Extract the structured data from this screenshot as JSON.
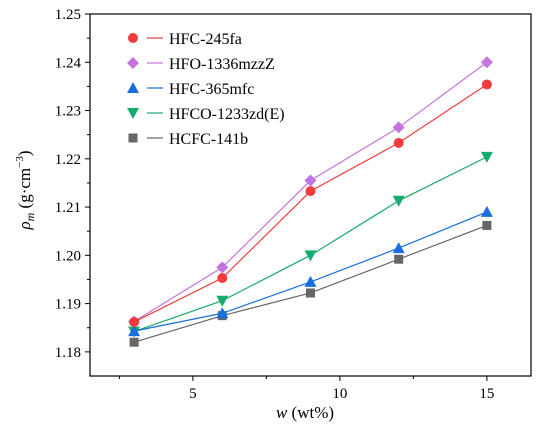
{
  "chart_data": {
    "type": "line",
    "xlabel": "w (wt%)",
    "ylabel": "ρm (g·cm−3)",
    "xlim": [
      1.5,
      16.5
    ],
    "ylim": [
      1.175,
      1.25
    ],
    "x_ticks": [
      5,
      10,
      15
    ],
    "x_tick_labels": [
      "5",
      "10",
      "15"
    ],
    "y_ticks": [
      1.18,
      1.19,
      1.2,
      1.21,
      1.22,
      1.23,
      1.24,
      1.25
    ],
    "y_tick_labels": [
      "1.18",
      "1.19",
      "1.20",
      "1.21",
      "1.22",
      "1.23",
      "1.24",
      "1.25"
    ],
    "grid": false,
    "legend_position": "top-left",
    "x": [
      3,
      6,
      9,
      12,
      15
    ],
    "series": [
      {
        "name": "HFC-245fa",
        "marker": "circle",
        "color": "#f03c3c",
        "values": [
          1.1862,
          1.1953,
          1.2133,
          1.2233,
          1.2354
        ]
      },
      {
        "name": "HFO-1336mzzZ",
        "marker": "diamond",
        "color": "#c473e0",
        "values": [
          1.1863,
          1.1975,
          1.2155,
          1.2265,
          1.24
        ]
      },
      {
        "name": "HFC-365mfc",
        "marker": "triangle-up",
        "color": "#1a6fe0",
        "values": [
          1.1843,
          1.188,
          1.1945,
          1.2015,
          1.209
        ]
      },
      {
        "name": "HFCO-1233zd(E)",
        "marker": "triangle-down",
        "color": "#17ab6c",
        "values": [
          1.1842,
          1.1906,
          1.2,
          1.2113,
          1.2204
        ]
      },
      {
        "name": "HCFC-141b",
        "marker": "square",
        "color": "#666666",
        "values": [
          1.182,
          1.1875,
          1.1922,
          1.1992,
          1.2062
        ]
      }
    ]
  }
}
